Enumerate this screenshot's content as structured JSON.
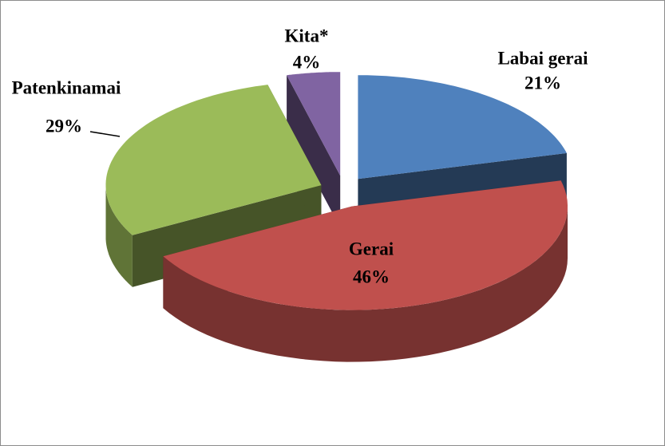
{
  "chart_data": {
    "type": "pie",
    "categories": [
      "Labai gerai",
      "Gerai",
      "Patenkinamai",
      "Kita*"
    ],
    "values": [
      21,
      46,
      29,
      4
    ],
    "value_labels": [
      "21%",
      "46%",
      "29%",
      "4%"
    ],
    "colors": [
      "#4f81bd",
      "#c0504d",
      "#9bbb59",
      "#8064a2"
    ]
  }
}
